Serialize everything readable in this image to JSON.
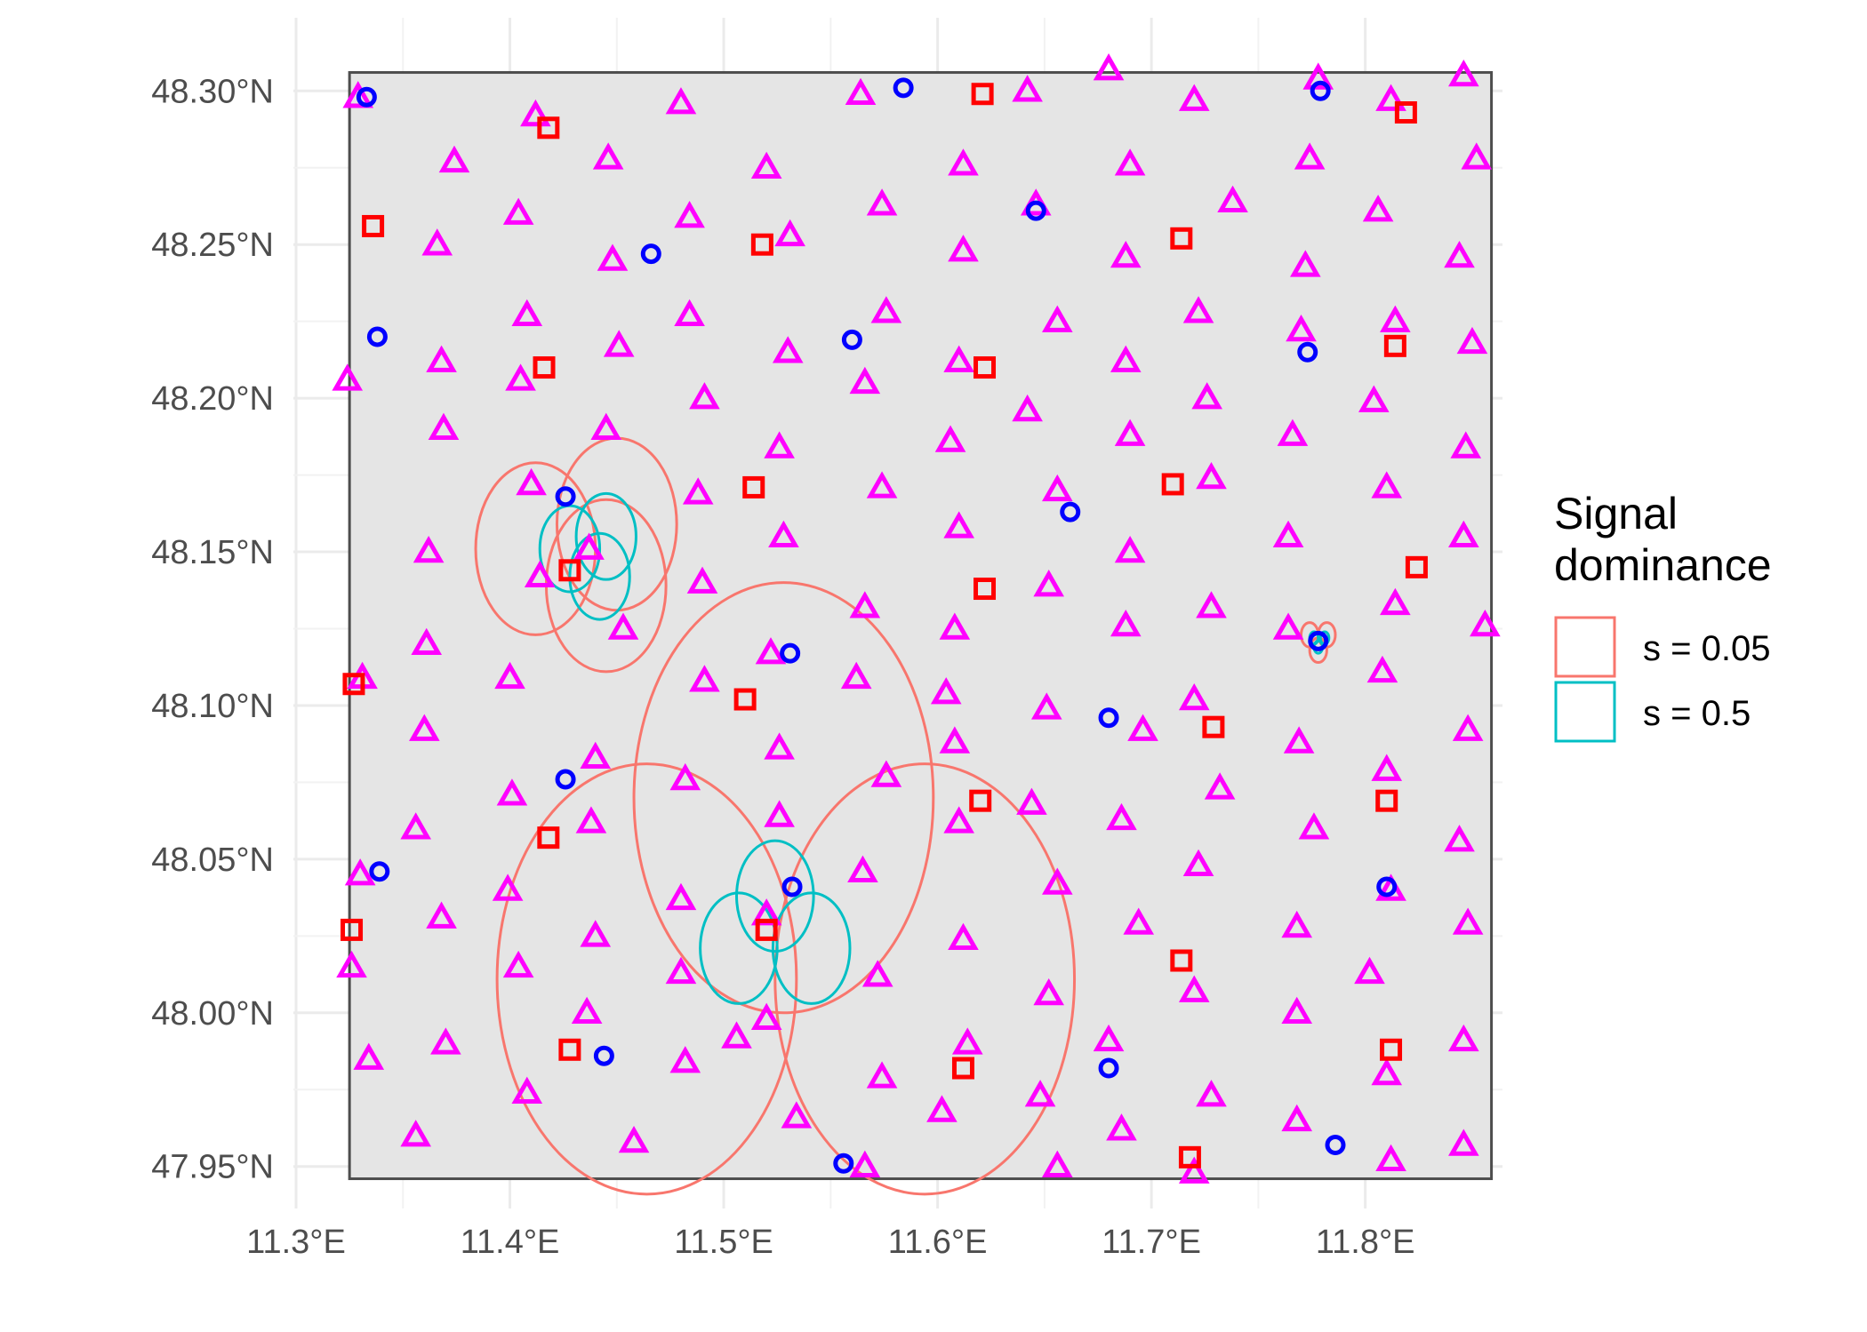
{
  "chart_data": {
    "type": "scatter",
    "title": "",
    "xlabel": "",
    "ylabel": "",
    "xlim": [
      11.3,
      11.86
    ],
    "ylim": [
      47.945,
      48.305
    ],
    "grid": true,
    "legend_position": "right",
    "x_ticks": [
      {
        "value": 11.3,
        "label": "11.3°E"
      },
      {
        "value": 11.4,
        "label": "11.4°E"
      },
      {
        "value": 11.5,
        "label": "11.5°E"
      },
      {
        "value": 11.6,
        "label": "11.6°E"
      },
      {
        "value": 11.7,
        "label": "11.7°E"
      },
      {
        "value": 11.8,
        "label": "11.8°E"
      }
    ],
    "y_ticks": [
      {
        "value": 47.95,
        "label": "47.95°N"
      },
      {
        "value": 48.0,
        "label": "48.00°N"
      },
      {
        "value": 48.05,
        "label": "48.05°N"
      },
      {
        "value": 48.1,
        "label": "48.10°N"
      },
      {
        "value": 48.15,
        "label": "48.15°N"
      },
      {
        "value": 48.2,
        "label": "48.20°N"
      },
      {
        "value": 48.25,
        "label": "48.25°N"
      },
      {
        "value": 48.3,
        "label": "48.30°N"
      }
    ],
    "region": {
      "xmin": 11.325,
      "xmax": 11.859,
      "ymin": 47.946,
      "ymax": 48.306,
      "fill": "#e5e5e5",
      "stroke": "#4d4d4d"
    },
    "legend": {
      "title_lines": [
        "Signal",
        "dominance"
      ],
      "entries": [
        {
          "label": "s = 0.05",
          "color": "#f8766d"
        },
        {
          "label": "s = 0.5",
          "color": "#00bfc4"
        }
      ]
    },
    "point_colors": {
      "triangle": "#ff00ff",
      "square": "#ff0000",
      "circle": "#0000ff"
    },
    "triangles": [
      [
        11.329,
        48.298
      ],
      [
        11.412,
        48.292
      ],
      [
        11.48,
        48.296
      ],
      [
        11.564,
        48.299
      ],
      [
        11.642,
        48.3
      ],
      [
        11.68,
        48.307
      ],
      [
        11.72,
        48.297
      ],
      [
        11.778,
        48.304
      ],
      [
        11.812,
        48.297
      ],
      [
        11.846,
        48.305
      ],
      [
        11.374,
        48.277
      ],
      [
        11.446,
        48.278
      ],
      [
        11.52,
        48.275
      ],
      [
        11.612,
        48.276
      ],
      [
        11.69,
        48.276
      ],
      [
        11.774,
        48.278
      ],
      [
        11.852,
        48.278
      ],
      [
        11.366,
        48.25
      ],
      [
        11.404,
        48.26
      ],
      [
        11.448,
        48.245
      ],
      [
        11.484,
        48.259
      ],
      [
        11.531,
        48.253
      ],
      [
        11.574,
        48.263
      ],
      [
        11.612,
        48.248
      ],
      [
        11.646,
        48.263
      ],
      [
        11.688,
        48.246
      ],
      [
        11.738,
        48.264
      ],
      [
        11.772,
        48.243
      ],
      [
        11.806,
        48.261
      ],
      [
        11.844,
        48.246
      ],
      [
        11.324,
        48.206
      ],
      [
        11.368,
        48.212
      ],
      [
        11.408,
        48.227
      ],
      [
        11.451,
        48.217
      ],
      [
        11.484,
        48.227
      ],
      [
        11.53,
        48.215
      ],
      [
        11.576,
        48.228
      ],
      [
        11.61,
        48.212
      ],
      [
        11.656,
        48.225
      ],
      [
        11.688,
        48.212
      ],
      [
        11.722,
        48.228
      ],
      [
        11.77,
        48.222
      ],
      [
        11.814,
        48.225
      ],
      [
        11.85,
        48.218
      ],
      [
        11.369,
        48.19
      ],
      [
        11.405,
        48.206
      ],
      [
        11.445,
        48.19
      ],
      [
        11.491,
        48.2
      ],
      [
        11.526,
        48.184
      ],
      [
        11.566,
        48.205
      ],
      [
        11.606,
        48.186
      ],
      [
        11.642,
        48.196
      ],
      [
        11.69,
        48.188
      ],
      [
        11.726,
        48.2
      ],
      [
        11.766,
        48.188
      ],
      [
        11.804,
        48.199
      ],
      [
        11.847,
        48.184
      ],
      [
        11.41,
        48.172
      ],
      [
        11.488,
        48.169
      ],
      [
        11.574,
        48.171
      ],
      [
        11.61,
        48.158
      ],
      [
        11.656,
        48.17
      ],
      [
        11.69,
        48.15
      ],
      [
        11.728,
        48.174
      ],
      [
        11.764,
        48.155
      ],
      [
        11.81,
        48.171
      ],
      [
        11.846,
        48.155
      ],
      [
        11.362,
        48.15
      ],
      [
        11.414,
        48.142
      ],
      [
        11.437,
        48.151
      ],
      [
        11.49,
        48.14
      ],
      [
        11.528,
        48.155
      ],
      [
        11.566,
        48.132
      ],
      [
        11.608,
        48.125
      ],
      [
        11.652,
        48.139
      ],
      [
        11.688,
        48.126
      ],
      [
        11.728,
        48.132
      ],
      [
        11.764,
        48.125
      ],
      [
        11.814,
        48.133
      ],
      [
        11.856,
        48.126
      ],
      [
        11.331,
        48.109
      ],
      [
        11.361,
        48.12
      ],
      [
        11.4,
        48.109
      ],
      [
        11.453,
        48.125
      ],
      [
        11.491,
        48.108
      ],
      [
        11.522,
        48.117
      ],
      [
        11.562,
        48.109
      ],
      [
        11.604,
        48.104
      ],
      [
        11.651,
        48.099
      ],
      [
        11.696,
        48.092
      ],
      [
        11.72,
        48.102
      ],
      [
        11.769,
        48.088
      ],
      [
        11.808,
        48.111
      ],
      [
        11.848,
        48.092
      ],
      [
        11.36,
        48.092
      ],
      [
        11.401,
        48.071
      ],
      [
        11.44,
        48.083
      ],
      [
        11.482,
        48.076
      ],
      [
        11.526,
        48.086
      ],
      [
        11.576,
        48.077
      ],
      [
        11.608,
        48.088
      ],
      [
        11.644,
        48.068
      ],
      [
        11.686,
        48.063
      ],
      [
        11.732,
        48.073
      ],
      [
        11.776,
        48.06
      ],
      [
        11.81,
        48.079
      ],
      [
        11.844,
        48.056
      ],
      [
        11.356,
        48.06
      ],
      [
        11.33,
        48.045
      ],
      [
        11.368,
        48.031
      ],
      [
        11.399,
        48.04
      ],
      [
        11.438,
        48.062
      ],
      [
        11.48,
        48.037
      ],
      [
        11.526,
        48.064
      ],
      [
        11.565,
        48.046
      ],
      [
        11.61,
        48.062
      ],
      [
        11.656,
        48.042
      ],
      [
        11.694,
        48.029
      ],
      [
        11.722,
        48.048
      ],
      [
        11.768,
        48.028
      ],
      [
        11.812,
        48.04
      ],
      [
        11.848,
        48.029
      ],
      [
        11.326,
        48.015
      ],
      [
        11.404,
        48.015
      ],
      [
        11.44,
        48.025
      ],
      [
        11.48,
        48.013
      ],
      [
        11.52,
        48.032
      ],
      [
        11.572,
        48.012
      ],
      [
        11.612,
        48.024
      ],
      [
        11.652,
        48.006
      ],
      [
        11.72,
        48.007
      ],
      [
        11.768,
        48.0
      ],
      [
        11.802,
        48.013
      ],
      [
        11.334,
        47.985
      ],
      [
        11.37,
        47.99
      ],
      [
        11.436,
        48.0
      ],
      [
        11.482,
        47.984
      ],
      [
        11.52,
        47.998
      ],
      [
        11.574,
        47.979
      ],
      [
        11.614,
        47.99
      ],
      [
        11.68,
        47.991
      ],
      [
        11.728,
        47.973
      ],
      [
        11.81,
        47.98
      ],
      [
        11.846,
        47.991
      ],
      [
        11.408,
        47.974
      ],
      [
        11.458,
        47.958
      ],
      [
        11.506,
        47.992
      ],
      [
        11.534,
        47.966
      ],
      [
        11.566,
        47.95
      ],
      [
        11.602,
        47.968
      ],
      [
        11.648,
        47.973
      ],
      [
        11.656,
        47.95
      ],
      [
        11.686,
        47.962
      ],
      [
        11.72,
        47.948
      ],
      [
        11.768,
        47.965
      ],
      [
        11.812,
        47.952
      ],
      [
        11.846,
        47.957
      ],
      [
        11.356,
        47.96
      ]
    ],
    "squares": [
      [
        11.418,
        48.288
      ],
      [
        11.621,
        48.299
      ],
      [
        11.819,
        48.293
      ],
      [
        11.336,
        48.256
      ],
      [
        11.518,
        48.25
      ],
      [
        11.714,
        48.252
      ],
      [
        11.416,
        48.21
      ],
      [
        11.622,
        48.21
      ],
      [
        11.814,
        48.217
      ],
      [
        11.514,
        48.171
      ],
      [
        11.71,
        48.172
      ],
      [
        11.428,
        48.144
      ],
      [
        11.622,
        48.138
      ],
      [
        11.824,
        48.145
      ],
      [
        11.327,
        48.107
      ],
      [
        11.51,
        48.102
      ],
      [
        11.729,
        48.093
      ],
      [
        11.418,
        48.057
      ],
      [
        11.62,
        48.069
      ],
      [
        11.81,
        48.069
      ],
      [
        11.326,
        48.027
      ],
      [
        11.52,
        48.027
      ],
      [
        11.714,
        48.017
      ],
      [
        11.428,
        47.988
      ],
      [
        11.612,
        47.982
      ],
      [
        11.812,
        47.988
      ],
      [
        11.718,
        47.953
      ]
    ],
    "circles": [
      [
        11.333,
        48.298
      ],
      [
        11.584,
        48.301
      ],
      [
        11.779,
        48.3
      ],
      [
        11.466,
        48.247
      ],
      [
        11.646,
        48.261
      ],
      [
        11.338,
        48.22
      ],
      [
        11.56,
        48.219
      ],
      [
        11.773,
        48.215
      ],
      [
        11.426,
        48.168
      ],
      [
        11.662,
        48.163
      ],
      [
        11.778,
        48.121
      ],
      [
        11.531,
        48.117
      ],
      [
        11.68,
        48.096
      ],
      [
        11.426,
        48.076
      ],
      [
        11.339,
        48.046
      ],
      [
        11.532,
        48.041
      ],
      [
        11.81,
        48.041
      ],
      [
        11.444,
        47.986
      ],
      [
        11.68,
        47.982
      ],
      [
        11.786,
        47.957
      ],
      [
        11.556,
        47.951
      ]
    ],
    "dominance_circles": {
      "s = 0.05": [
        [
          11.412,
          48.151,
          0.028
        ],
        [
          11.45,
          48.159,
          0.028
        ],
        [
          11.445,
          48.139,
          0.028
        ],
        [
          11.528,
          48.07,
          0.07
        ],
        [
          11.464,
          48.011,
          0.07
        ],
        [
          11.594,
          48.011,
          0.07
        ],
        [
          11.774,
          48.123,
          0.004
        ],
        [
          11.782,
          48.123,
          0.004
        ],
        [
          11.778,
          48.118,
          0.004
        ]
      ],
      "s = 0.5": [
        [
          11.428,
          48.151,
          0.014
        ],
        [
          11.445,
          48.155,
          0.014
        ],
        [
          11.442,
          48.142,
          0.014
        ],
        [
          11.524,
          48.038,
          0.018
        ],
        [
          11.507,
          48.021,
          0.018
        ],
        [
          11.541,
          48.021,
          0.018
        ],
        [
          11.776,
          48.122,
          0.002
        ],
        [
          11.781,
          48.122,
          0.002
        ],
        [
          11.778,
          48.119,
          0.002
        ]
      ]
    }
  }
}
